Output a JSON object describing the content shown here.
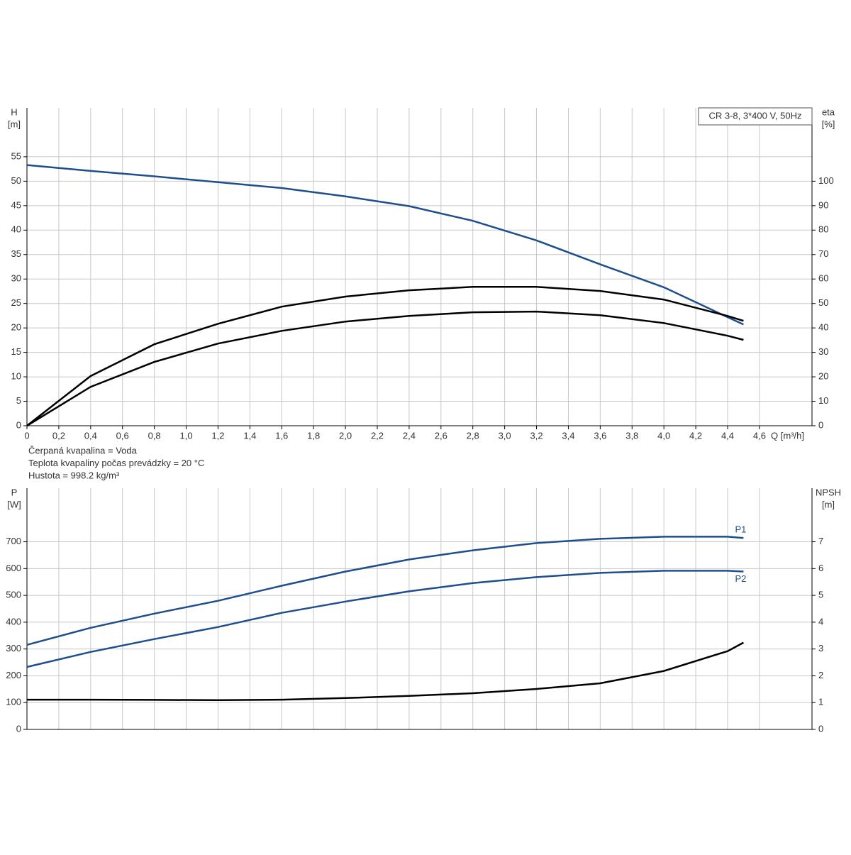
{
  "chart_data": [
    {
      "type": "line",
      "ylabel": "H",
      "yunit": "[m]",
      "y2label": "eta",
      "y2unit": "[%]",
      "xlabel": "Q [m³/h]",
      "annotation": "CR 3-8, 3*400 V, 50Hz",
      "notes": [
        "Čerpaná kvapalina = Voda",
        "Teplota kvapaliny počas prevádzky = 20 °C",
        "Hustota = 998.2 kg/m³"
      ],
      "xlim": [
        0,
        4.93
      ],
      "xticks": [
        0,
        {
          "value": 0.2,
          "label": "0,2"
        },
        {
          "value": 0.4,
          "label": "0,4"
        },
        {
          "value": 0.6,
          "label": "0,6"
        },
        {
          "value": 0.8,
          "label": "0,8"
        },
        {
          "value": 1.0,
          "label": "1,0"
        },
        {
          "value": 1.2,
          "label": "1,2"
        },
        {
          "value": 1.4,
          "label": "1,4"
        },
        {
          "value": 1.6,
          "label": "1,6"
        },
        {
          "value": 1.8,
          "label": "1,8"
        },
        {
          "value": 2.0,
          "label": "2,0"
        },
        {
          "value": 2.2,
          "label": "2,2"
        },
        {
          "value": 2.4,
          "label": "2,4"
        },
        {
          "value": 2.6,
          "label": "2,6"
        },
        {
          "value": 2.8,
          "label": "2,8"
        },
        {
          "value": 3.0,
          "label": "3,0"
        },
        {
          "value": 3.2,
          "label": "3,2"
        },
        {
          "value": 3.4,
          "label": "3,4"
        },
        {
          "value": 3.6,
          "label": "3,6"
        },
        {
          "value": 3.8,
          "label": "3,8"
        },
        {
          "value": 4.0,
          "label": "4,0"
        },
        {
          "value": 4.2,
          "label": "4,2"
        },
        {
          "value": 4.4,
          "label": "4,4"
        },
        {
          "value": 4.6,
          "label": "4,6"
        }
      ],
      "ylim": [
        0,
        65
      ],
      "yticks": [
        0,
        5,
        10,
        15,
        20,
        25,
        30,
        35,
        40,
        45,
        50,
        55
      ],
      "y2lim": [
        0,
        130
      ],
      "y2ticks": [
        0,
        10,
        20,
        30,
        40,
        50,
        60,
        70,
        80,
        90,
        100
      ],
      "x": [
        0,
        0.4,
        0.8,
        1.2,
        1.6,
        2.0,
        2.4,
        2.8,
        3.2,
        3.6,
        4.0,
        4.4,
        4.5
      ],
      "series": [
        {
          "color": "#1f4e8c",
          "values": [
            53.3,
            52.1,
            51.0,
            49.8,
            48.6,
            46.9,
            44.9,
            41.9,
            37.9,
            33.0,
            28.3,
            22.2,
            20.7
          ]
        },
        {
          "color": "#000000",
          "axis": "y2",
          "values": [
            0,
            20.3,
            33.3,
            41.7,
            48.7,
            52.8,
            55.4,
            56.8,
            56.8,
            55.1,
            51.6,
            44.9,
            42.9
          ]
        },
        {
          "color": "#000000",
          "axis": "y2",
          "values": [
            0,
            15.9,
            26.1,
            33.6,
            38.8,
            42.6,
            44.9,
            46.4,
            46.7,
            45.2,
            42.0,
            36.8,
            35.1
          ]
        }
      ]
    },
    {
      "type": "line",
      "ylabel": "P",
      "yunit": "[W]",
      "y2label": "NPSH",
      "y2unit": "[m]",
      "xlim": [
        0,
        4.93
      ],
      "ylim": [
        0,
        900
      ],
      "yticks": [
        0,
        100,
        200,
        300,
        400,
        500,
        600,
        700
      ],
      "y2lim": [
        0,
        9
      ],
      "y2ticks": [
        0,
        1,
        2,
        3,
        4,
        5,
        6,
        7
      ],
      "x": [
        0,
        0.4,
        0.8,
        1.2,
        1.6,
        2.0,
        2.4,
        2.8,
        3.2,
        3.6,
        4.0,
        4.4,
        4.5
      ],
      "series": [
        {
          "name": "P1",
          "color": "#1f4e8c",
          "values": [
            315.6,
            379,
            432,
            480,
            536,
            589,
            634,
            668,
            695,
            711,
            719,
            719,
            714
          ]
        },
        {
          "name": "P2",
          "color": "#1f4e8c",
          "values": [
            233,
            289,
            337,
            382,
            435,
            477,
            515,
            546,
            568,
            584,
            592,
            592,
            589
          ]
        },
        {
          "color": "#000000",
          "axis": "y2",
          "values": [
            1.11,
            1.11,
            1.1,
            1.09,
            1.11,
            1.17,
            1.25,
            1.35,
            1.51,
            1.72,
            2.18,
            2.92,
            3.24
          ]
        }
      ]
    }
  ]
}
